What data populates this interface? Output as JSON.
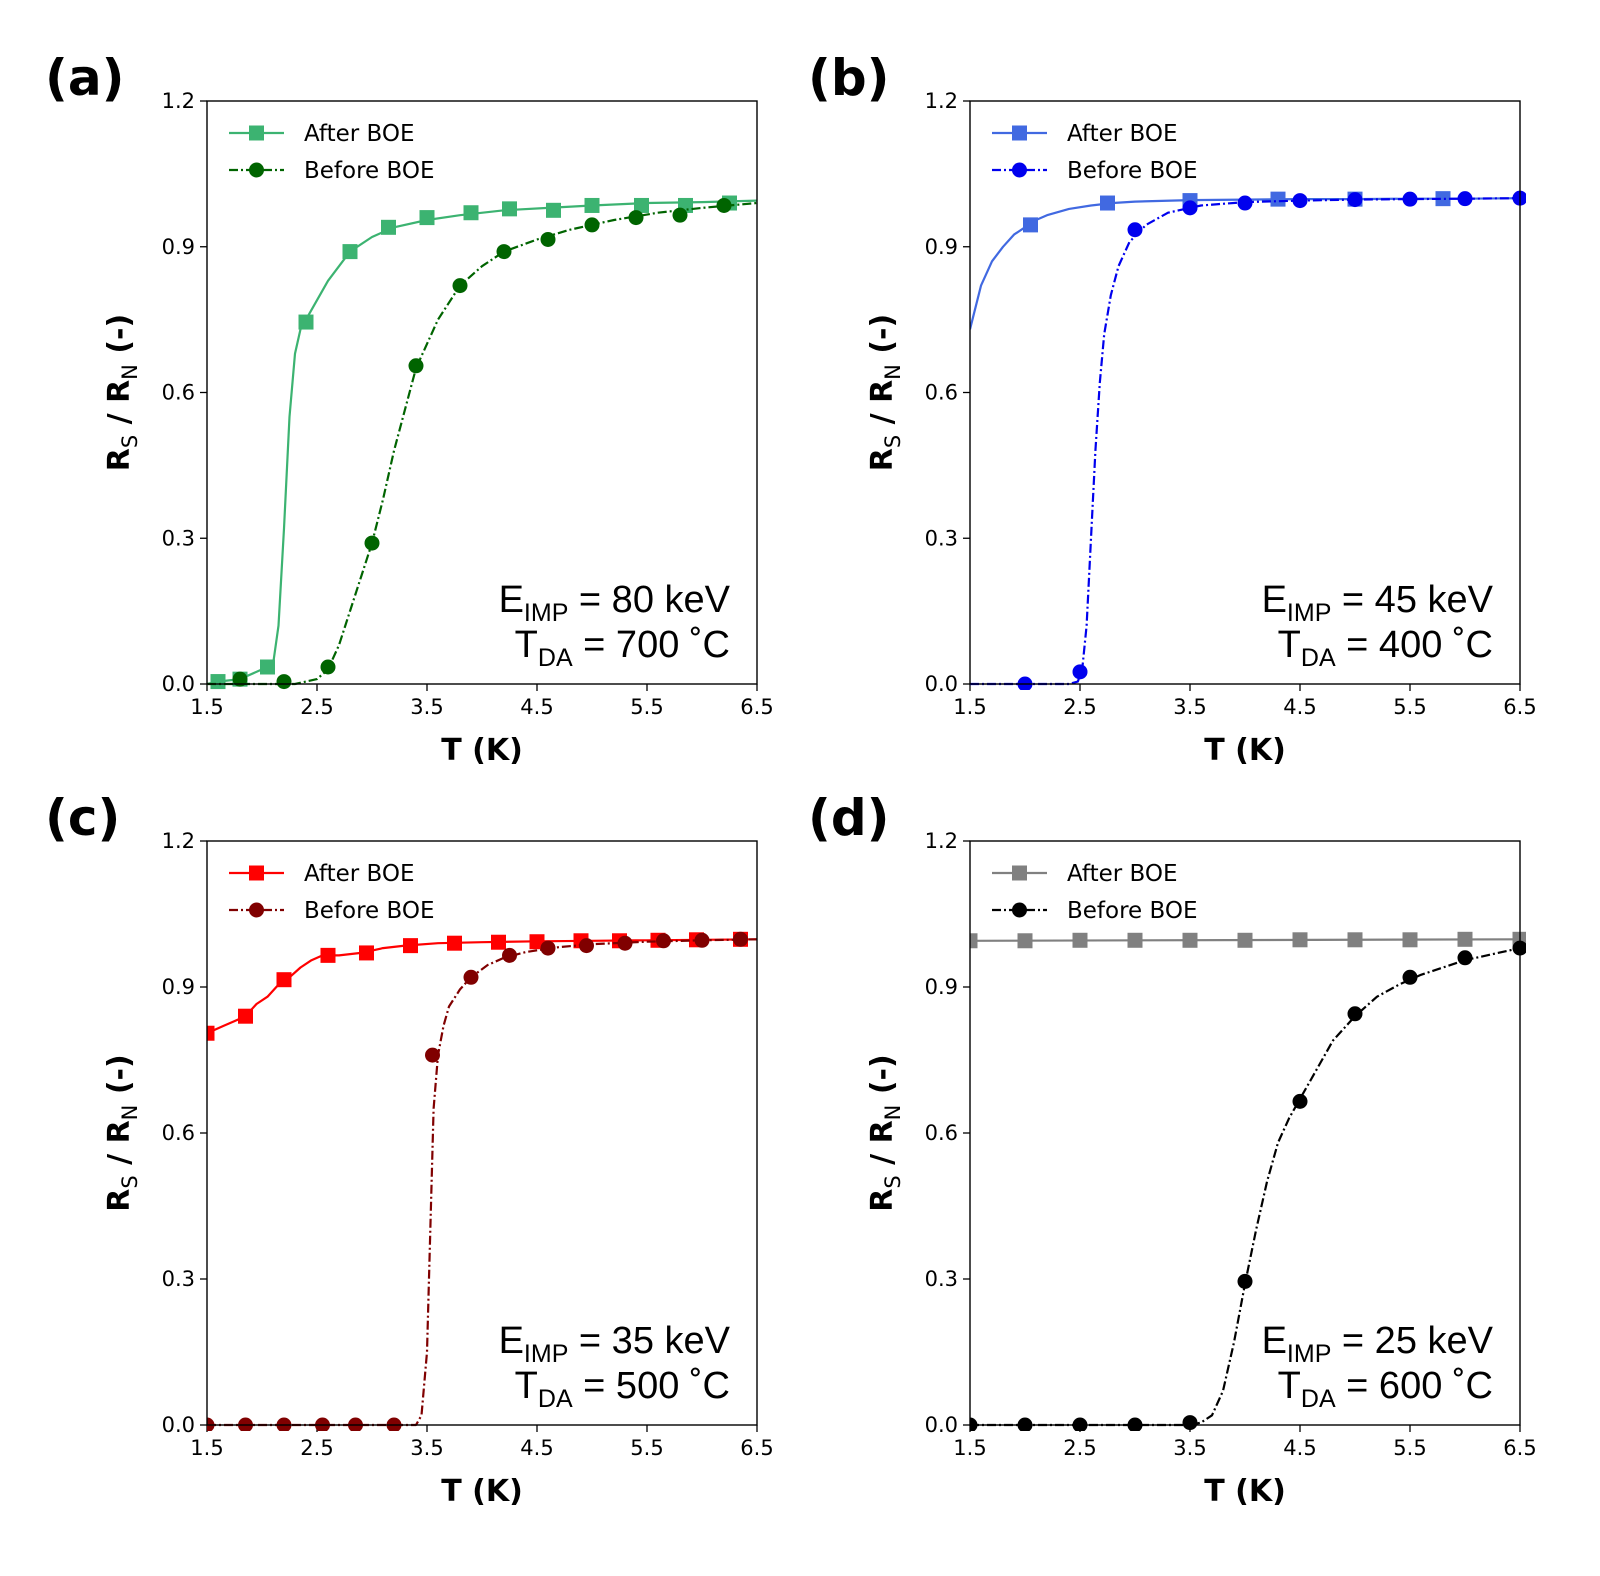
{
  "chart_data": [
    {
      "panel_label": "(a)",
      "type": "line",
      "xlabel": "T (K)",
      "ylabel_main": "R",
      "ylabel_sub1": "S",
      "ylabel_mid": " / ",
      "ylabel_main2": "R",
      "ylabel_sub2": "N",
      "ylabel_tail": " (-)",
      "xlim": [
        1.5,
        6.5
      ],
      "ylim": [
        0.0,
        1.2
      ],
      "xticks": [
        "1.5",
        "2.5",
        "3.5",
        "4.5",
        "5.5",
        "6.5"
      ],
      "yticks": [
        "0.0",
        "0.3",
        "0.6",
        "0.9",
        "1.2"
      ],
      "annotation": {
        "e_main": "E",
        "e_sub": "IMP",
        "e_rest": " = 80 keV",
        "t_main": "T",
        "t_sub": "DA",
        "t_rest": " = 700 ˚C"
      },
      "legend_position": "upper-left",
      "series": [
        {
          "name": "After BOE",
          "color": "#3cb371",
          "marker": "square",
          "linestyle": "solid",
          "x": [
            1.5,
            1.6,
            1.8,
            2.0,
            2.1,
            2.15,
            2.2,
            2.25,
            2.3,
            2.35,
            2.4,
            2.5,
            2.6,
            2.8,
            3.0,
            3.2,
            3.5,
            3.8,
            4.2,
            4.6,
            5.0,
            5.5,
            6.0,
            6.5
          ],
          "y": [
            0.0,
            0.005,
            0.01,
            0.03,
            0.04,
            0.12,
            0.32,
            0.55,
            0.68,
            0.73,
            0.75,
            0.79,
            0.83,
            0.89,
            0.92,
            0.94,
            0.955,
            0.965,
            0.975,
            0.98,
            0.985,
            0.99,
            0.992,
            0.995
          ],
          "marker_x": [
            1.6,
            1.8,
            2.05,
            2.4,
            2.8,
            3.15,
            3.5,
            3.9,
            4.25,
            4.65,
            5.0,
            5.45,
            5.85,
            6.25
          ],
          "marker_y": [
            0.005,
            0.01,
            0.035,
            0.745,
            0.89,
            0.94,
            0.96,
            0.97,
            0.978,
            0.975,
            0.985,
            0.985,
            0.985,
            0.99
          ]
        },
        {
          "name": "Before BOE",
          "color": "#006400",
          "marker": "circle",
          "linestyle": "dashdot",
          "x": [
            1.5,
            2.0,
            2.3,
            2.5,
            2.6,
            2.7,
            2.8,
            2.9,
            3.0,
            3.1,
            3.2,
            3.4,
            3.6,
            3.8,
            4.0,
            4.2,
            4.5,
            4.8,
            5.2,
            5.6,
            6.0,
            6.5
          ],
          "y": [
            0.0,
            0.0,
            0.0,
            0.01,
            0.03,
            0.08,
            0.15,
            0.22,
            0.29,
            0.38,
            0.48,
            0.65,
            0.75,
            0.82,
            0.86,
            0.89,
            0.915,
            0.935,
            0.955,
            0.97,
            0.98,
            0.99
          ],
          "marker_x": [
            1.8,
            2.2,
            2.6,
            3.0,
            3.4,
            3.8,
            4.2,
            4.6,
            5.0,
            5.4,
            5.8,
            6.2
          ],
          "marker_y": [
            0.01,
            0.005,
            0.035,
            0.29,
            0.655,
            0.82,
            0.89,
            0.915,
            0.945,
            0.96,
            0.965,
            0.985
          ]
        }
      ]
    },
    {
      "panel_label": "(b)",
      "type": "line",
      "xlabel": "T (K)",
      "ylabel_main": "R",
      "ylabel_sub1": "S",
      "ylabel_mid": " / ",
      "ylabel_main2": "R",
      "ylabel_sub2": "N",
      "ylabel_tail": " (-)",
      "xlim": [
        1.5,
        6.5
      ],
      "ylim": [
        0.0,
        1.2
      ],
      "xticks": [
        "1.5",
        "2.5",
        "3.5",
        "4.5",
        "5.5",
        "6.5"
      ],
      "yticks": [
        "0.0",
        "0.3",
        "0.6",
        "0.9",
        "1.2"
      ],
      "annotation": {
        "e_main": "E",
        "e_sub": "IMP",
        "e_rest": " = 45 keV",
        "t_main": "T",
        "t_sub": "DA",
        "t_rest": " = 400 ˚C"
      },
      "legend_position": "upper-left",
      "series": [
        {
          "name": "After BOE",
          "color": "#4169e1",
          "marker": "square",
          "linestyle": "solid",
          "x": [
            1.5,
            1.6,
            1.7,
            1.8,
            1.9,
            2.0,
            2.1,
            2.2,
            2.4,
            2.6,
            2.8,
            3.0,
            3.5,
            4.0,
            4.5,
            5.0,
            5.5,
            6.0,
            6.5
          ],
          "y": [
            0.73,
            0.82,
            0.87,
            0.9,
            0.925,
            0.94,
            0.955,
            0.965,
            0.978,
            0.985,
            0.99,
            0.993,
            0.996,
            0.997,
            0.998,
            0.998,
            0.999,
            0.999,
            1.0
          ],
          "marker_x": [
            2.05,
            2.75,
            3.5,
            4.3,
            5.0,
            5.8
          ],
          "marker_y": [
            0.945,
            0.99,
            0.995,
            0.998,
            0.998,
            0.999
          ]
        },
        {
          "name": "Before BOE",
          "color": "#0000ee",
          "marker": "circle",
          "linestyle": "dashdot",
          "x": [
            1.5,
            2.0,
            2.4,
            2.48,
            2.52,
            2.56,
            2.6,
            2.64,
            2.68,
            2.72,
            2.78,
            2.85,
            2.95,
            3.1,
            3.3,
            3.6,
            4.0,
            4.5,
            5.0,
            5.5,
            6.0,
            6.5
          ],
          "y": [
            0.0,
            0.0,
            0.0,
            0.005,
            0.03,
            0.12,
            0.3,
            0.48,
            0.62,
            0.72,
            0.8,
            0.86,
            0.91,
            0.945,
            0.97,
            0.985,
            0.992,
            0.995,
            0.997,
            0.998,
            0.999,
            1.0
          ],
          "marker_x": [
            2.0,
            2.5,
            3.0,
            3.5,
            4.0,
            4.5,
            5.0,
            5.5,
            6.0,
            6.5
          ],
          "marker_y": [
            0.0,
            0.025,
            0.935,
            0.98,
            0.99,
            0.995,
            0.997,
            0.998,
            0.999,
            1.0
          ]
        }
      ]
    },
    {
      "panel_label": "(c)",
      "type": "line",
      "xlabel": "T (K)",
      "ylabel_main": "R",
      "ylabel_sub1": "S",
      "ylabel_mid": " / ",
      "ylabel_main2": "R",
      "ylabel_sub2": "N",
      "ylabel_tail": " (-)",
      "xlim": [
        1.5,
        6.5
      ],
      "ylim": [
        0.0,
        1.2
      ],
      "xticks": [
        "1.5",
        "2.5",
        "3.5",
        "4.5",
        "5.5",
        "6.5"
      ],
      "yticks": [
        "0.0",
        "0.3",
        "0.6",
        "0.9",
        "1.2"
      ],
      "annotation": {
        "e_main": "E",
        "e_sub": "IMP",
        "e_rest": " = 35 keV",
        "t_main": "T",
        "t_sub": "DA",
        "t_rest": " = 500 ˚C"
      },
      "legend_position": "upper-left",
      "series": [
        {
          "name": "After BOE",
          "color": "#ff0000",
          "marker": "square",
          "linestyle": "solid",
          "x": [
            1.5,
            1.65,
            1.75,
            1.85,
            1.95,
            2.05,
            2.15,
            2.25,
            2.35,
            2.45,
            2.55,
            2.7,
            2.9,
            3.1,
            3.3,
            3.6,
            4.0,
            4.5,
            5.0,
            5.5,
            6.0,
            6.5
          ],
          "y": [
            0.805,
            0.82,
            0.83,
            0.84,
            0.865,
            0.88,
            0.905,
            0.92,
            0.94,
            0.955,
            0.965,
            0.965,
            0.97,
            0.98,
            0.985,
            0.99,
            0.992,
            0.994,
            0.995,
            0.996,
            0.997,
            0.998
          ],
          "marker_x": [
            1.5,
            1.85,
            2.2,
            2.6,
            2.95,
            3.35,
            3.75,
            4.15,
            4.5,
            4.9,
            5.25,
            5.6,
            5.95,
            6.35
          ],
          "marker_y": [
            0.805,
            0.84,
            0.915,
            0.965,
            0.97,
            0.985,
            0.99,
            0.992,
            0.993,
            0.995,
            0.995,
            0.996,
            0.997,
            0.998
          ]
        },
        {
          "name": "Before BOE",
          "color": "#800000",
          "marker": "circle",
          "linestyle": "dashdot",
          "x": [
            1.5,
            3.0,
            3.4,
            3.45,
            3.5,
            3.53,
            3.56,
            3.6,
            3.65,
            3.7,
            3.8,
            3.9,
            4.05,
            4.2,
            4.4,
            4.7,
            5.0,
            5.5,
            6.0,
            6.5
          ],
          "y": [
            0.0,
            0.0,
            0.0,
            0.02,
            0.15,
            0.4,
            0.65,
            0.76,
            0.82,
            0.86,
            0.895,
            0.92,
            0.945,
            0.96,
            0.972,
            0.982,
            0.988,
            0.993,
            0.996,
            0.998
          ],
          "marker_x": [
            1.5,
            1.85,
            2.2,
            2.55,
            2.85,
            3.2,
            3.55,
            3.9,
            4.25,
            4.6,
            4.95,
            5.3,
            5.65,
            6.0,
            6.35
          ],
          "marker_y": [
            0.0,
            0.0,
            0.0,
            0.0,
            0.0,
            0.0,
            0.76,
            0.92,
            0.965,
            0.98,
            0.985,
            0.99,
            0.995,
            0.996,
            0.998
          ]
        }
      ]
    },
    {
      "panel_label": "(d)",
      "type": "line",
      "xlabel": "T (K)",
      "ylabel_main": "R",
      "ylabel_sub1": "S",
      "ylabel_mid": " / ",
      "ylabel_main2": "R",
      "ylabel_sub2": "N",
      "ylabel_tail": " (-)",
      "xlim": [
        1.5,
        6.5
      ],
      "ylim": [
        0.0,
        1.2
      ],
      "xticks": [
        "1.5",
        "2.5",
        "3.5",
        "4.5",
        "5.5",
        "6.5"
      ],
      "yticks": [
        "0.0",
        "0.3",
        "0.6",
        "0.9",
        "1.2"
      ],
      "annotation": {
        "e_main": "E",
        "e_sub": "IMP",
        "e_rest": " = 25 keV",
        "t_main": "T",
        "t_sub": "DA",
        "t_rest": " = 600 ˚C"
      },
      "legend_position": "upper-left",
      "series": [
        {
          "name": "After BOE",
          "color": "#808080",
          "marker": "square",
          "linestyle": "solid",
          "x": [
            1.5,
            6.5
          ],
          "y": [
            0.995,
            0.998
          ],
          "marker_x": [
            1.5,
            2.0,
            2.5,
            3.0,
            3.5,
            4.0,
            4.5,
            5.0,
            5.5,
            6.0,
            6.5
          ],
          "marker_y": [
            0.995,
            0.995,
            0.996,
            0.996,
            0.996,
            0.996,
            0.997,
            0.997,
            0.997,
            0.998,
            0.998
          ]
        },
        {
          "name": "Before BOE",
          "color": "#000000",
          "marker": "circle",
          "linestyle": "dashdot",
          "x": [
            1.5,
            3.5,
            3.6,
            3.7,
            3.8,
            3.9,
            4.0,
            4.1,
            4.2,
            4.3,
            4.4,
            4.5,
            4.6,
            4.8,
            5.0,
            5.2,
            5.4,
            5.6,
            6.0,
            6.5
          ],
          "y": [
            0.0,
            0.0,
            0.005,
            0.02,
            0.07,
            0.17,
            0.29,
            0.4,
            0.5,
            0.58,
            0.63,
            0.67,
            0.71,
            0.79,
            0.84,
            0.88,
            0.905,
            0.925,
            0.955,
            0.98
          ],
          "marker_x": [
            1.5,
            2.0,
            2.5,
            3.0,
            3.5,
            4.0,
            4.5,
            5.0,
            5.5,
            6.0,
            6.5
          ],
          "marker_y": [
            0.0,
            0.0,
            0.0,
            0.0,
            0.005,
            0.295,
            0.665,
            0.845,
            0.92,
            0.96,
            0.98
          ]
        }
      ]
    }
  ]
}
